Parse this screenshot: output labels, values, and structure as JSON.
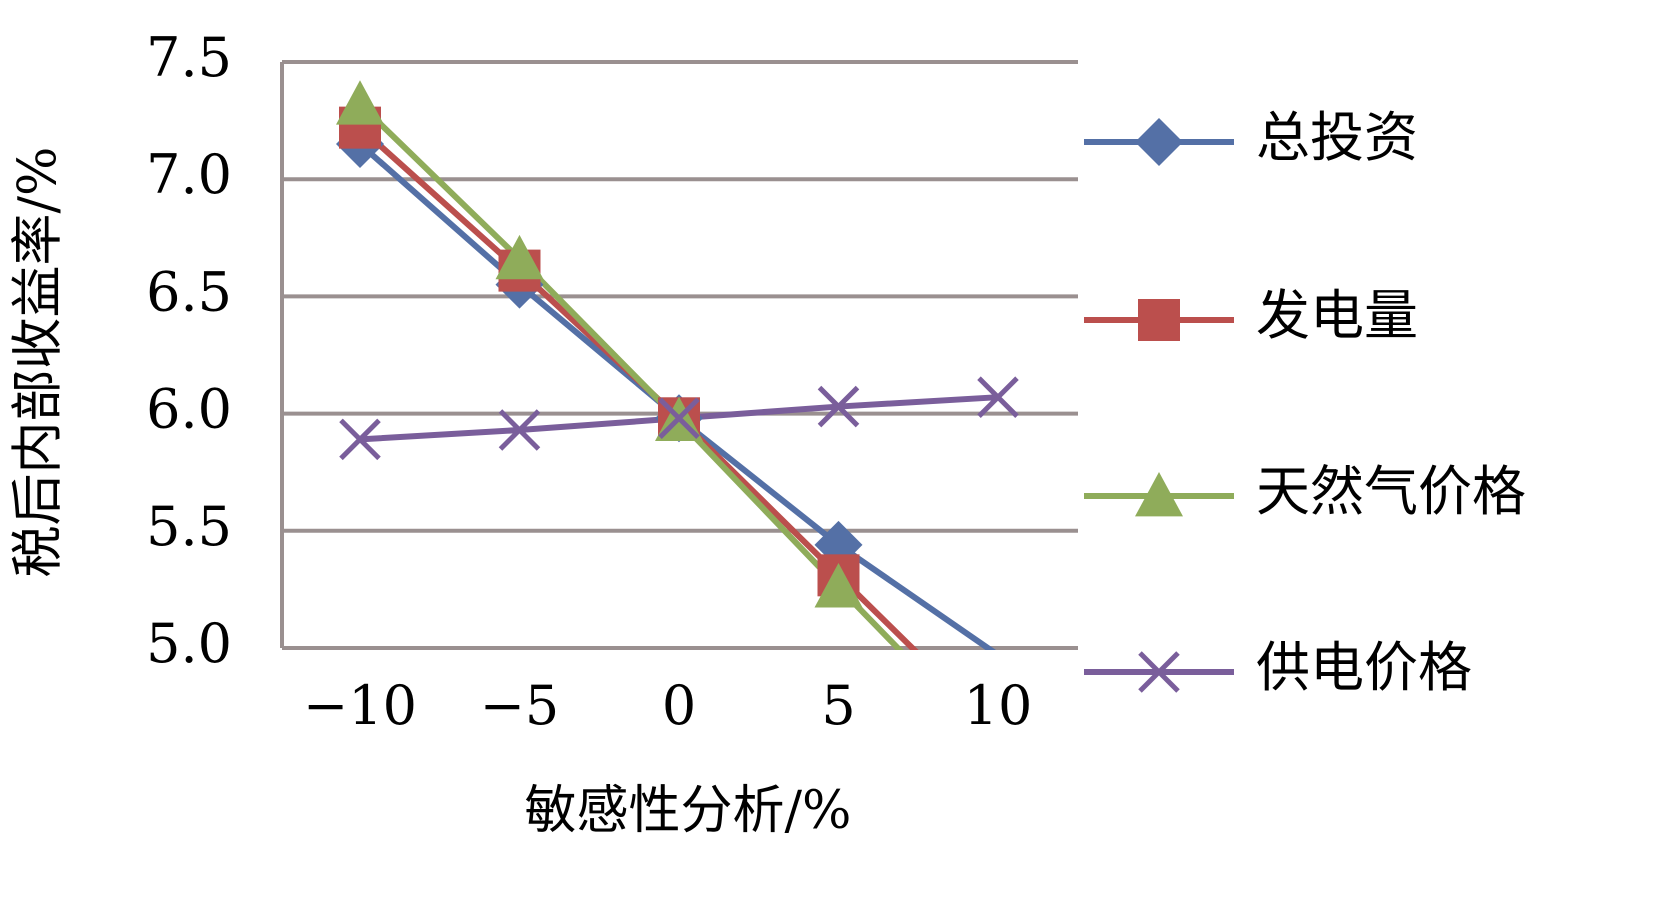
{
  "chart_data": {
    "type": "line",
    "title": "",
    "xlabel": "敏感性分析/%",
    "ylabel": "税后内部收益率/%",
    "categories": [
      "−10",
      "−5",
      "0",
      "5",
      "10"
    ],
    "x": [
      -10,
      -5,
      0,
      5,
      10
    ],
    "ylim": [
      5.0,
      7.5
    ],
    "yticks": [
      "5.0",
      "5.5",
      "6.0",
      "6.5",
      "7.0",
      "7.5"
    ],
    "grid": "horizontal",
    "legend_position": "right",
    "series": [
      {
        "name": "总投资",
        "color": "#5470a6",
        "marker": "diamond",
        "values": [
          7.15,
          6.55,
          5.98,
          5.44,
          4.97
        ]
      },
      {
        "name": "发电量",
        "color": "#bb4f4d",
        "marker": "square",
        "values": [
          7.22,
          6.61,
          5.98,
          5.31,
          4.64
        ]
      },
      {
        "name": "天然气价格",
        "color": "#8fac5a",
        "marker": "triangle",
        "values": [
          7.32,
          6.66,
          5.97,
          5.26,
          4.56
        ]
      },
      {
        "name": "供电价格",
        "color": "#7a5e9b",
        "marker": "x",
        "values": [
          5.89,
          5.93,
          5.98,
          6.03,
          6.07
        ]
      }
    ]
  }
}
